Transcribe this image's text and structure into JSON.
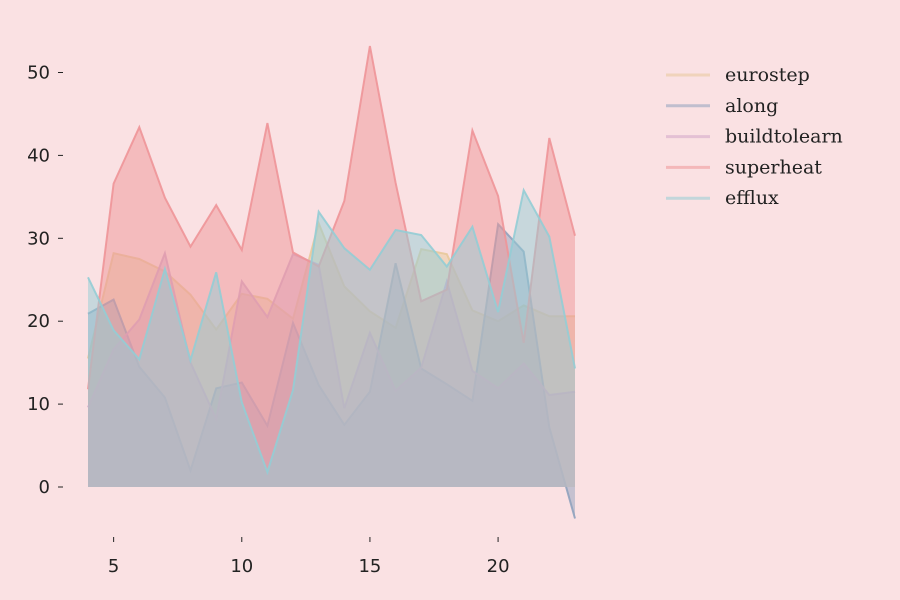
{
  "chart_data": {
    "type": "area",
    "title": "",
    "xlabel": "",
    "ylabel": "",
    "x": [
      4,
      5,
      6,
      7,
      8,
      9,
      10,
      11,
      12,
      13,
      14,
      15,
      16,
      17,
      18,
      19,
      20,
      21,
      22,
      23
    ],
    "xlim": [
      4,
      23
    ],
    "ylim": [
      -4,
      54
    ],
    "xticks": [
      5,
      10,
      15,
      20
    ],
    "yticks": [
      0,
      10,
      20,
      30,
      40,
      50
    ],
    "grid": false,
    "legend_position": "top-right, outside plot",
    "series": [
      {
        "name": "eurostep",
        "color": "#e8c99a",
        "values": [
          15.5,
          28.2,
          27.5,
          26.0,
          23.2,
          19.0,
          23.3,
          22.7,
          20.3,
          31.8,
          24.2,
          21.2,
          19.2,
          28.7,
          28.1,
          21.3,
          20.0,
          21.9,
          20.6,
          20.6
        ]
      },
      {
        "name": "along",
        "color": "#8fa2bd",
        "values": [
          20.9,
          22.6,
          14.5,
          10.8,
          2.0,
          11.9,
          12.6,
          7.4,
          19.8,
          12.3,
          7.5,
          11.5,
          27.0,
          14.3,
          12.4,
          10.4,
          31.7,
          28.4,
          7.2,
          -3.8
        ]
      },
      {
        "name": "buildtolearn",
        "color": "#d2a6c9",
        "values": [
          9.6,
          16.6,
          20.2,
          28.2,
          15.0,
          8.2,
          24.8,
          20.5,
          28.1,
          26.8,
          9.5,
          18.6,
          11.6,
          14.4,
          24.8,
          14.0,
          11.9,
          14.9,
          11.1,
          11.5
        ]
      },
      {
        "name": "superheat",
        "color": "#ee9598",
        "values": [
          11.8,
          36.6,
          43.4,
          34.9,
          29.0,
          34.0,
          28.6,
          43.9,
          28.3,
          26.6,
          34.5,
          53.2,
          36.7,
          22.4,
          23.8,
          43.0,
          35.1,
          17.4,
          42.1,
          30.3
        ]
      },
      {
        "name": "efflux",
        "color": "#93cdd5",
        "values": [
          25.3,
          18.9,
          15.4,
          26.3,
          15.3,
          25.9,
          10.2,
          1.8,
          11.7,
          33.2,
          28.8,
          26.2,
          31.0,
          30.4,
          26.6,
          31.4,
          21.1,
          35.8,
          30.2,
          14.3
        ]
      }
    ]
  }
}
